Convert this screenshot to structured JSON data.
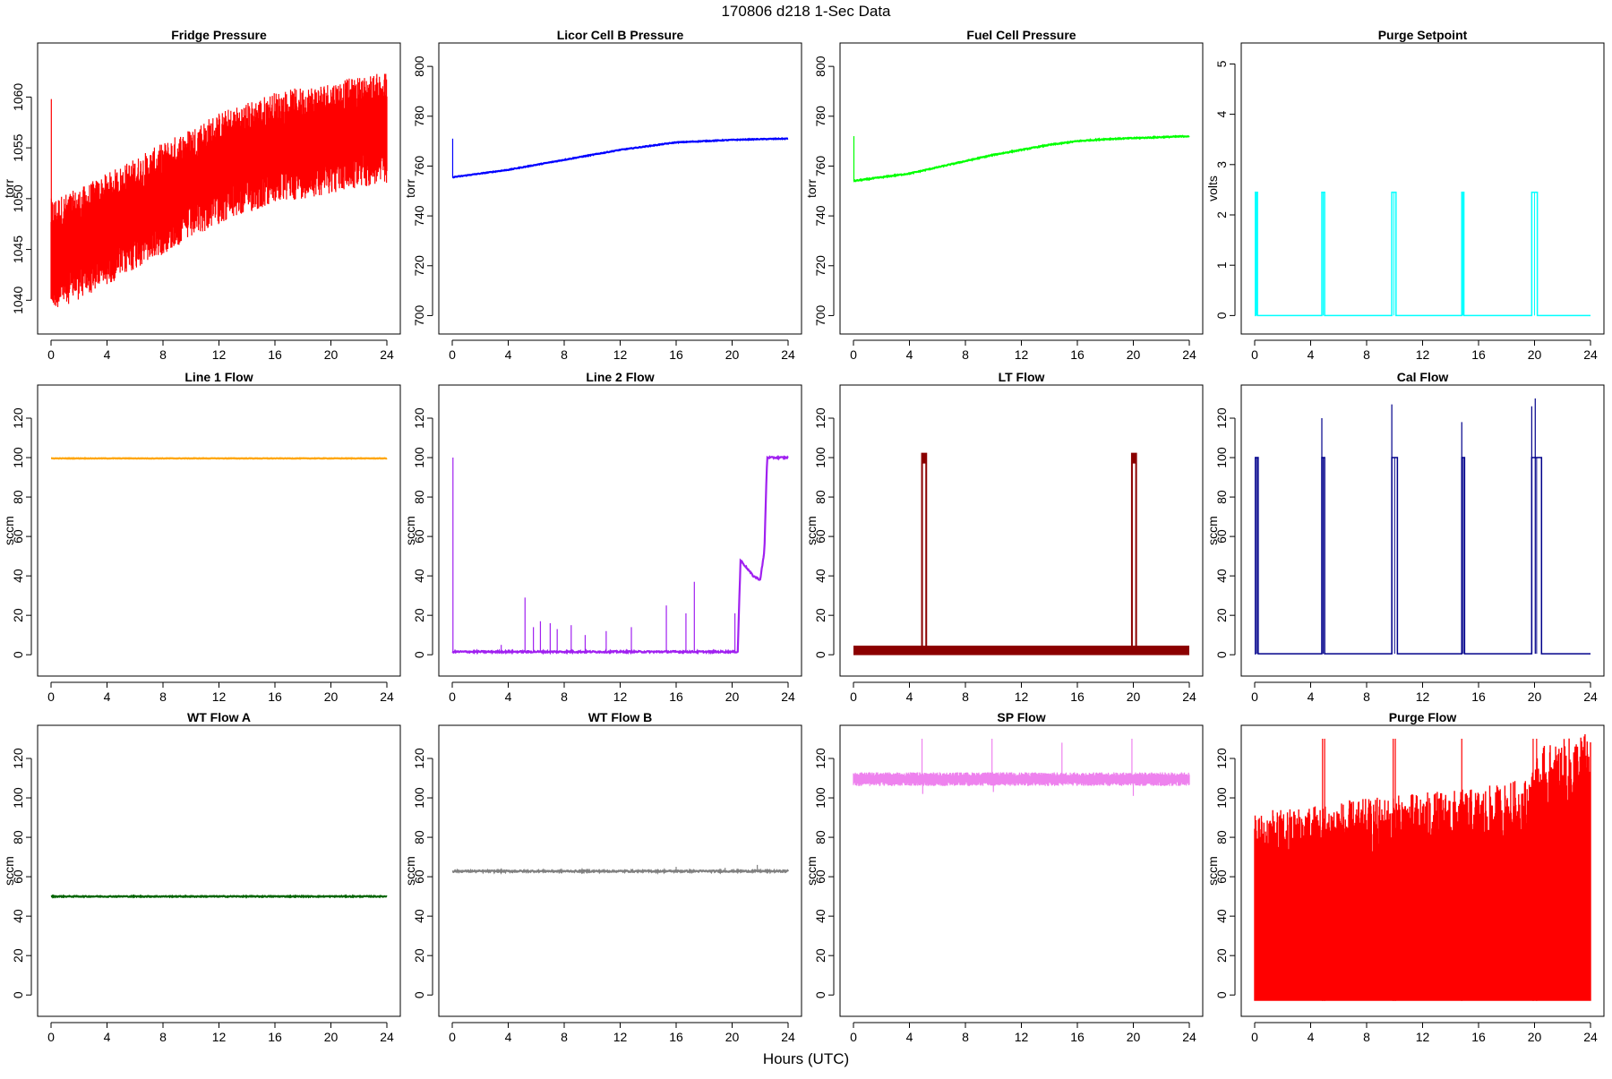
{
  "page": {
    "title": "170806   d218   1-Sec Data",
    "xlabel": "Hours (UTC)"
  },
  "chart_data": [
    {
      "type": "line",
      "title": "Fridge Pressure",
      "ylabel": "torr",
      "ylim": [
        1038,
        1064
      ],
      "yticks": [
        1040,
        1045,
        1050,
        1055,
        1060
      ],
      "xlim": [
        0,
        24
      ],
      "xticks": [
        0,
        4,
        8,
        12,
        16,
        20,
        24
      ],
      "color": "#ff0000",
      "style": "band",
      "x": [
        0,
        2,
        4,
        6,
        8,
        10,
        12,
        14,
        16,
        18,
        20,
        22,
        24
      ],
      "y": [
        1044.5,
        1045.5,
        1047,
        1048.5,
        1050,
        1051.5,
        1053,
        1054,
        1055,
        1055.5,
        1056,
        1056.5,
        1057
      ],
      "noise": 5.5,
      "spikes": [
        [
          0.02,
          1059.8
        ]
      ]
    },
    {
      "type": "line",
      "title": "Licor Cell B Pressure",
      "ylabel": "torr",
      "ylim": [
        698,
        804
      ],
      "yticks": [
        700,
        720,
        740,
        760,
        780,
        800
      ],
      "xlim": [
        0,
        24
      ],
      "xticks": [
        0,
        4,
        8,
        12,
        16,
        20,
        24
      ],
      "color": "#0000ff",
      "style": "line",
      "x": [
        0,
        2,
        4,
        6,
        8,
        10,
        12,
        14,
        16,
        18,
        20,
        22,
        24
      ],
      "y": [
        755.5,
        757,
        758.5,
        760.5,
        762.5,
        764.5,
        766.5,
        768,
        769.5,
        770,
        770.5,
        770.8,
        771
      ],
      "noise": 0.3,
      "spikes": [
        [
          0.03,
          771
        ]
      ]
    },
    {
      "type": "line",
      "title": "Fuel Cell Pressure",
      "ylabel": "torr",
      "ylim": [
        698,
        804
      ],
      "yticks": [
        700,
        720,
        740,
        760,
        780,
        800
      ],
      "xlim": [
        0,
        24
      ],
      "xticks": [
        0,
        4,
        8,
        12,
        16,
        20,
        24
      ],
      "color": "#00ff00",
      "style": "line",
      "x": [
        0,
        2,
        4,
        6,
        8,
        10,
        12,
        14,
        16,
        18,
        20,
        22,
        24
      ],
      "y": [
        754,
        755.5,
        757,
        759.5,
        762,
        764.5,
        766.5,
        768.5,
        770,
        770.8,
        771.2,
        771.6,
        772
      ],
      "noise": 0.4,
      "spikes": [
        [
          0.03,
          772
        ]
      ]
    },
    {
      "type": "line",
      "title": "Purge Setpoint",
      "ylabel": "volts",
      "ylim": [
        -0.1,
        5.15
      ],
      "yticks": [
        0,
        1,
        2,
        3,
        4,
        5
      ],
      "xlim": [
        0,
        24
      ],
      "xticks": [
        0,
        4,
        8,
        12,
        16,
        20,
        24
      ],
      "color": "#00ffff",
      "style": "pulses",
      "baseline": 0,
      "pulse_level": 2.45,
      "pulses": [
        [
          0.05,
          0.2
        ],
        [
          4.8,
          5.0
        ],
        [
          9.8,
          10.1
        ],
        [
          14.8,
          14.95
        ],
        [
          19.8,
          20.2
        ]
      ]
    },
    {
      "type": "line",
      "title": "Line 1 Flow",
      "ylabel": "sccm",
      "ylim": [
        -4,
        130
      ],
      "yticks": [
        0,
        20,
        40,
        60,
        80,
        100,
        120
      ],
      "xlim": [
        0,
        24
      ],
      "xticks": [
        0,
        4,
        8,
        12,
        16,
        20,
        24
      ],
      "color": "#ffa500",
      "style": "line",
      "x": [
        0,
        24
      ],
      "y": [
        99.6,
        99.6
      ],
      "noise": 0.25,
      "spikes": []
    },
    {
      "type": "line",
      "title": "Line 2 Flow",
      "ylabel": "sccm",
      "ylim": [
        -4,
        130
      ],
      "yticks": [
        0,
        20,
        40,
        60,
        80,
        100,
        120
      ],
      "xlim": [
        0,
        24
      ],
      "xticks": [
        0,
        4,
        8,
        12,
        16,
        20,
        24
      ],
      "color": "#a020f0",
      "style": "line",
      "x": [
        0,
        20.4,
        20.6,
        21.5,
        22.0,
        22.3,
        22.5,
        24
      ],
      "y": [
        1.5,
        1.5,
        48,
        40,
        38,
        52,
        100,
        100
      ],
      "noise": 0.8,
      "spikes": [
        [
          0.05,
          100
        ],
        [
          3.5,
          5
        ],
        [
          5.2,
          29
        ],
        [
          5.8,
          14
        ],
        [
          6.3,
          17
        ],
        [
          7,
          16
        ],
        [
          7.5,
          13
        ],
        [
          8.5,
          15
        ],
        [
          9.5,
          10
        ],
        [
          11,
          12
        ],
        [
          12.8,
          14
        ],
        [
          15.3,
          25
        ],
        [
          16.7,
          21
        ],
        [
          17.3,
          37
        ],
        [
          20.2,
          21
        ]
      ]
    },
    {
      "type": "line",
      "title": "LT Flow",
      "ylabel": "sccm",
      "ylim": [
        -4,
        130
      ],
      "yticks": [
        0,
        20,
        40,
        60,
        80,
        100,
        120
      ],
      "xlim": [
        0,
        24
      ],
      "xticks": [
        0,
        4,
        8,
        12,
        16,
        20,
        24
      ],
      "color": "#8b0000",
      "style": "ltflow",
      "base": 2.2,
      "pulse_level": 100,
      "pulses": [
        [
          4.9,
          5.2
        ],
        [
          19.9,
          20.2
        ]
      ]
    },
    {
      "type": "line",
      "title": "Cal Flow",
      "ylabel": "sccm",
      "ylim": [
        -4,
        130
      ],
      "yticks": [
        0,
        20,
        40,
        60,
        80,
        100,
        120
      ],
      "xlim": [
        0,
        24
      ],
      "xticks": [
        0,
        4,
        8,
        12,
        16,
        20,
        24
      ],
      "color": "#00008b",
      "style": "pulses",
      "baseline": 0.5,
      "pulse_level": 100,
      "pulses": [
        [
          0.05,
          0.25
        ],
        [
          4.8,
          5.0
        ],
        [
          9.8,
          10.2
        ],
        [
          14.8,
          15.0
        ],
        [
          19.8,
          20.5
        ]
      ],
      "spikes": [
        [
          4.8,
          120
        ],
        [
          9.8,
          127
        ],
        [
          14.8,
          118
        ],
        [
          19.8,
          126
        ],
        [
          20.05,
          130
        ]
      ]
    },
    {
      "type": "line",
      "title": "WT Flow A",
      "ylabel": "sccm",
      "ylim": [
        -4,
        130
      ],
      "yticks": [
        0,
        20,
        40,
        60,
        80,
        100,
        120
      ],
      "xlim": [
        0,
        24
      ],
      "xticks": [
        0,
        4,
        8,
        12,
        16,
        20,
        24
      ],
      "color": "#006400",
      "style": "line",
      "x": [
        0,
        24
      ],
      "y": [
        50,
        50
      ],
      "noise": 0.5,
      "spikes": []
    },
    {
      "type": "line",
      "title": "WT Flow B",
      "ylabel": "sccm",
      "ylim": [
        -4,
        130
      ],
      "yticks": [
        0,
        20,
        40,
        60,
        80,
        100,
        120
      ],
      "xlim": [
        0,
        24
      ],
      "xticks": [
        0,
        4,
        8,
        12,
        16,
        20,
        24
      ],
      "color": "#808080",
      "style": "line",
      "x": [
        0,
        24
      ],
      "y": [
        62.8,
        62.8
      ],
      "noise": 0.8,
      "spikes": [
        [
          16,
          65
        ],
        [
          19.5,
          64.5
        ],
        [
          21.8,
          66
        ]
      ]
    },
    {
      "type": "line",
      "title": "SP Flow",
      "ylabel": "sccm",
      "ylim": [
        -4,
        130
      ],
      "yticks": [
        0,
        20,
        40,
        60,
        80,
        100,
        120
      ],
      "xlim": [
        0,
        24
      ],
      "xticks": [
        0,
        4,
        8,
        12,
        16,
        20,
        24
      ],
      "color": "#ee82ee",
      "style": "band",
      "x": [
        0,
        24
      ],
      "y": [
        109.5,
        109.5
      ],
      "noise": 3.5,
      "spikes": [
        [
          4.9,
          130
        ],
        [
          4.95,
          102
        ],
        [
          9.9,
          130
        ],
        [
          10,
          103
        ],
        [
          14.9,
          128
        ],
        [
          19.9,
          130
        ],
        [
          20,
          101
        ]
      ]
    },
    {
      "type": "line",
      "title": "Purge Flow",
      "ylabel": "sccm",
      "ylim": [
        -4,
        130
      ],
      "yticks": [
        0,
        20,
        40,
        60,
        80,
        100,
        120
      ],
      "xlim": [
        0,
        24
      ],
      "xticks": [
        0,
        4,
        8,
        12,
        16,
        20,
        24
      ],
      "color": "#ff0000",
      "style": "purge",
      "base": -3,
      "top": [
        [
          0,
          88
        ],
        [
          4,
          92
        ],
        [
          8,
          95
        ],
        [
          12,
          98
        ],
        [
          16,
          100
        ],
        [
          19.5,
          105
        ],
        [
          20.5,
          120
        ],
        [
          24,
          128
        ]
      ],
      "spikes": [
        [
          4.85,
          130
        ],
        [
          5.0,
          130
        ],
        [
          9.9,
          130
        ],
        [
          10.05,
          130
        ],
        [
          14.8,
          130
        ],
        [
          19.9,
          130
        ],
        [
          20.15,
          130
        ]
      ]
    }
  ]
}
